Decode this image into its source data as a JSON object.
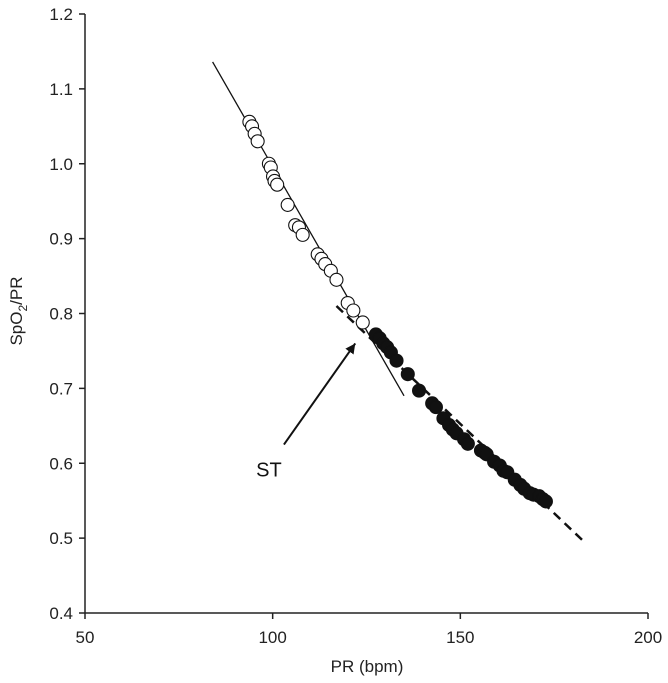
{
  "chart_data": {
    "type": "scatter",
    "title": "",
    "xlabel": "PR (bpm)",
    "ylabel_main": "SpO",
    "ylabel_sub": "2",
    "ylabel_tail": "/PR",
    "xlim": [
      50,
      200
    ],
    "ylim": [
      0.4,
      1.2
    ],
    "xticks": [
      50,
      100,
      150,
      200
    ],
    "yticks": [
      0.4,
      0.5,
      0.6,
      0.7,
      0.8,
      0.9,
      1.0,
      1.1,
      1.2
    ],
    "x_tick_labels": [
      "50",
      "100",
      "150",
      "200"
    ],
    "y_tick_labels": [
      "0.4",
      "0.5",
      "0.6",
      "0.7",
      "0.8",
      "0.9",
      "1.0",
      "1.1",
      "1.2"
    ],
    "grid": false,
    "legend": "none",
    "series": [
      {
        "marker": "open-circle",
        "points": [
          [
            93.8,
            1.056
          ],
          [
            94.5,
            1.05
          ],
          [
            95.2,
            1.04
          ],
          [
            96.0,
            1.03
          ],
          [
            99.0,
            1.0
          ],
          [
            99.5,
            0.995
          ],
          [
            100.1,
            0.983
          ],
          [
            100.5,
            0.977
          ],
          [
            101.2,
            0.972
          ],
          [
            104.0,
            0.945
          ],
          [
            106.0,
            0.918
          ],
          [
            107.0,
            0.915
          ],
          [
            108.0,
            0.905
          ],
          [
            112.0,
            0.879
          ],
          [
            113.0,
            0.873
          ],
          [
            114.0,
            0.866
          ],
          [
            115.5,
            0.857
          ],
          [
            117.0,
            0.845
          ],
          [
            120.0,
            0.814
          ],
          [
            121.5,
            0.804
          ],
          [
            124.0,
            0.788
          ]
        ]
      },
      {
        "marker": "filled-circle",
        "points": [
          [
            127.5,
            0.772
          ],
          [
            128.5,
            0.767
          ],
          [
            129.5,
            0.76
          ],
          [
            130.5,
            0.755
          ],
          [
            131.5,
            0.748
          ],
          [
            133.0,
            0.737
          ],
          [
            136.0,
            0.719
          ],
          [
            139.0,
            0.697
          ],
          [
            142.5,
            0.68
          ],
          [
            143.5,
            0.675
          ],
          [
            145.5,
            0.66
          ],
          [
            147.0,
            0.651
          ],
          [
            148.0,
            0.645
          ],
          [
            149.0,
            0.64
          ],
          [
            151.0,
            0.632
          ],
          [
            152.0,
            0.626
          ],
          [
            155.5,
            0.617
          ],
          [
            156.5,
            0.614
          ],
          [
            157.0,
            0.612
          ],
          [
            159.0,
            0.602
          ],
          [
            160.5,
            0.597
          ],
          [
            161.5,
            0.59
          ],
          [
            162.5,
            0.588
          ],
          [
            164.5,
            0.578
          ],
          [
            166.0,
            0.571
          ],
          [
            167.0,
            0.566
          ],
          [
            168.5,
            0.56
          ],
          [
            169.5,
            0.558
          ],
          [
            171.0,
            0.556
          ],
          [
            172.0,
            0.552
          ],
          [
            172.8,
            0.549
          ]
        ]
      }
    ],
    "fit_lines": [
      {
        "style": "solid",
        "from": [
          84,
          1.136
        ],
        "to": [
          135,
          0.69
        ]
      },
      {
        "style": "dashed",
        "from": [
          117,
          0.81
        ],
        "to": [
          183,
          0.495
        ]
      }
    ],
    "annotations": [
      {
        "text": "ST",
        "arrow_from": [
          103,
          0.625
        ],
        "arrow_to": [
          122,
          0.76
        ]
      }
    ]
  }
}
